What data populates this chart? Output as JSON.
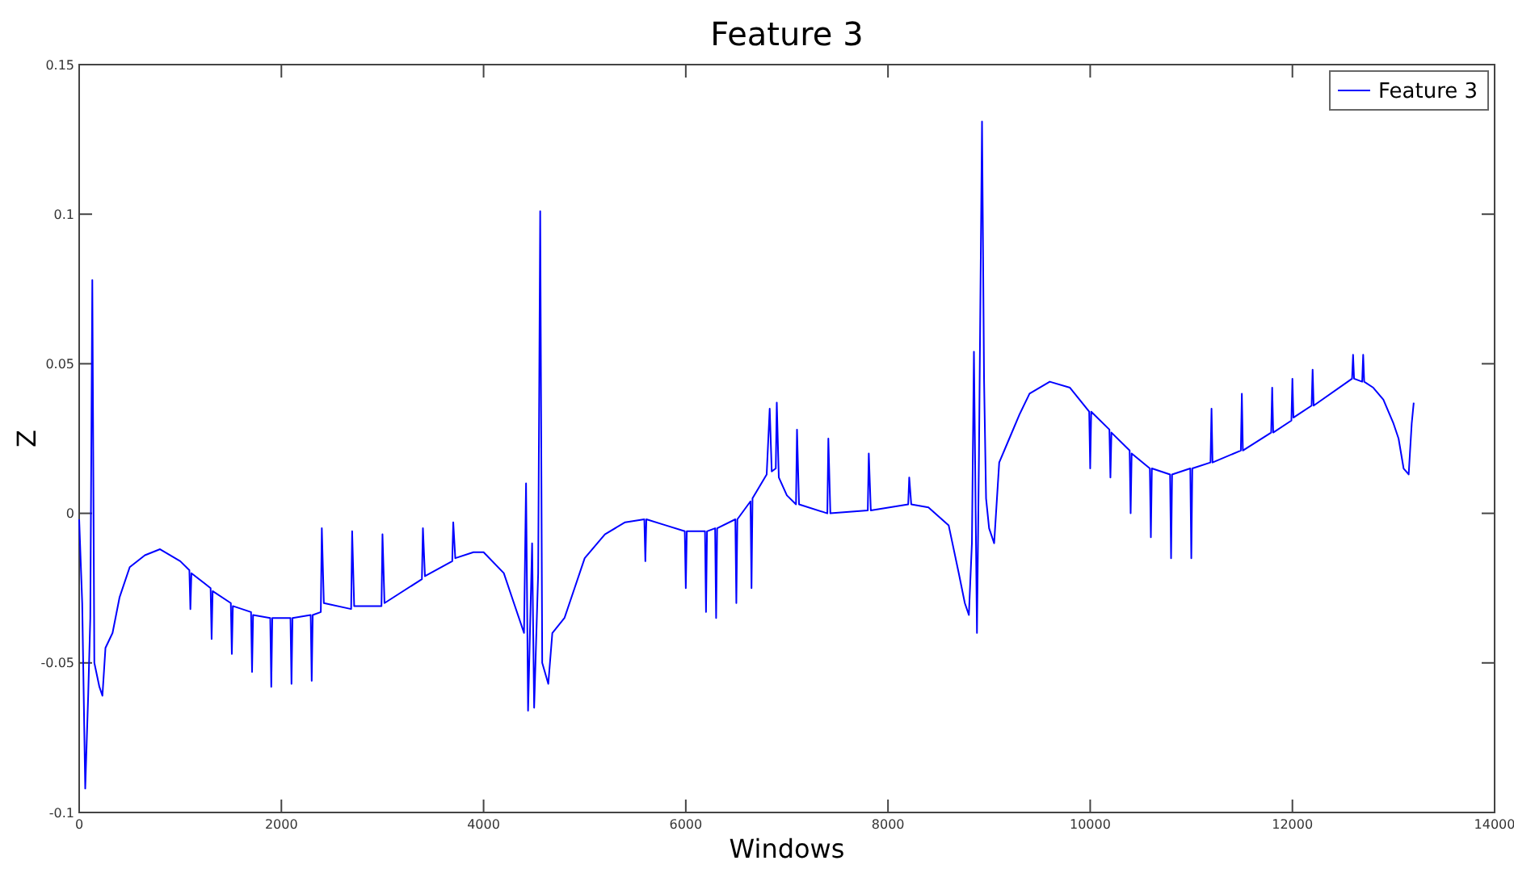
{
  "chart_data": {
    "type": "line",
    "title": "Feature 3",
    "xlabel": "Windows",
    "ylabel": "Z",
    "xlim": [
      0,
      14000
    ],
    "xticks": [
      0,
      2000,
      4000,
      6000,
      8000,
      10000,
      12000,
      14000
    ],
    "ylim": [
      -0.1,
      0.15
    ],
    "yticks": [
      -0.1,
      -0.05,
      0,
      0.05,
      0.1,
      0.15
    ],
    "grid": false,
    "legend": "top right",
    "marker": "none",
    "line_style": "solid",
    "series": [
      {
        "name": "Feature 3",
        "color": "#0000ff",
        "x": [
          0,
          30,
          60,
          90,
          110,
          130,
          150,
          200,
          230,
          260,
          330,
          400,
          500,
          650,
          800,
          1000,
          1090,
          1100,
          1110,
          1300,
          1310,
          1320,
          1500,
          1510,
          1520,
          1700,
          1710,
          1720,
          1890,
          1900,
          1910,
          2090,
          2100,
          2110,
          2290,
          2300,
          2310,
          2390,
          2400,
          2420,
          2690,
          2700,
          2720,
          2990,
          3000,
          3020,
          3390,
          3400,
          3420,
          3690,
          3700,
          3720,
          3900,
          4000,
          4200,
          4300,
          4400,
          4420,
          4440,
          4480,
          4500,
          4540,
          4560,
          4580,
          4640,
          4680,
          4800,
          4900,
          5000,
          5200,
          5400,
          5590,
          5600,
          5610,
          5800,
          5990,
          6000,
          6010,
          6190,
          6200,
          6210,
          6290,
          6300,
          6310,
          6490,
          6500,
          6510,
          6640,
          6650,
          6660,
          6800,
          6830,
          6850,
          6890,
          6900,
          6920,
          7000,
          7090,
          7100,
          7120,
          7400,
          7410,
          7430,
          7800,
          7810,
          7830,
          8200,
          8210,
          8230,
          8400,
          8600,
          8700,
          8760,
          8800,
          8830,
          8850,
          8880,
          8900,
          8930,
          8950,
          8970,
          9000,
          9050,
          9100,
          9200,
          9300,
          9400,
          9600,
          9800,
          9990,
          10000,
          10010,
          10190,
          10200,
          10210,
          10390,
          10400,
          10410,
          10590,
          10600,
          10610,
          10790,
          10800,
          10810,
          10990,
          11000,
          11010,
          11190,
          11200,
          11210,
          11490,
          11500,
          11510,
          11790,
          11800,
          11810,
          11990,
          12000,
          12010,
          12190,
          12200,
          12210,
          12590,
          12600,
          12610,
          12690,
          12700,
          12710,
          12800,
          12900,
          13000,
          13050,
          13100,
          13150,
          13180,
          13200
        ],
        "values": [
          -0.002,
          -0.03,
          -0.092,
          -0.06,
          -0.035,
          0.078,
          -0.05,
          -0.058,
          -0.061,
          -0.045,
          -0.04,
          -0.028,
          -0.018,
          -0.014,
          -0.012,
          -0.016,
          -0.019,
          -0.032,
          -0.02,
          -0.025,
          -0.042,
          -0.026,
          -0.03,
          -0.047,
          -0.031,
          -0.033,
          -0.053,
          -0.034,
          -0.035,
          -0.058,
          -0.035,
          -0.035,
          -0.057,
          -0.035,
          -0.034,
          -0.056,
          -0.034,
          -0.033,
          -0.005,
          -0.03,
          -0.032,
          -0.006,
          -0.031,
          -0.031,
          -0.007,
          -0.03,
          -0.022,
          -0.005,
          -0.021,
          -0.016,
          -0.003,
          -0.015,
          -0.013,
          -0.013,
          -0.02,
          -0.03,
          -0.04,
          0.01,
          -0.066,
          -0.01,
          -0.065,
          -0.02,
          0.101,
          -0.05,
          -0.057,
          -0.04,
          -0.035,
          -0.025,
          -0.015,
          -0.007,
          -0.003,
          -0.002,
          -0.016,
          -0.002,
          -0.004,
          -0.006,
          -0.025,
          -0.006,
          -0.006,
          -0.033,
          -0.006,
          -0.005,
          -0.035,
          -0.005,
          -0.002,
          -0.03,
          -0.002,
          0.004,
          -0.025,
          0.005,
          0.013,
          0.035,
          0.014,
          0.015,
          0.037,
          0.012,
          0.006,
          0.003,
          0.028,
          0.003,
          0.0,
          0.025,
          0.0,
          0.001,
          0.02,
          0.001,
          0.003,
          0.012,
          0.003,
          0.002,
          -0.004,
          -0.02,
          -0.03,
          -0.034,
          -0.01,
          0.054,
          -0.04,
          0.02,
          0.131,
          0.045,
          0.005,
          -0.005,
          -0.01,
          0.017,
          0.025,
          0.033,
          0.04,
          0.044,
          0.042,
          0.034,
          0.015,
          0.034,
          0.028,
          0.012,
          0.027,
          0.021,
          0.0,
          0.02,
          0.015,
          -0.008,
          0.015,
          0.013,
          -0.015,
          0.013,
          0.015,
          -0.015,
          0.015,
          0.017,
          0.035,
          0.017,
          0.021,
          0.04,
          0.021,
          0.027,
          0.042,
          0.027,
          0.031,
          0.045,
          0.032,
          0.036,
          0.048,
          0.036,
          0.045,
          0.053,
          0.045,
          0.044,
          0.053,
          0.044,
          0.042,
          0.038,
          0.03,
          0.025,
          0.015,
          0.013,
          0.03,
          0.037
        ]
      }
    ]
  }
}
